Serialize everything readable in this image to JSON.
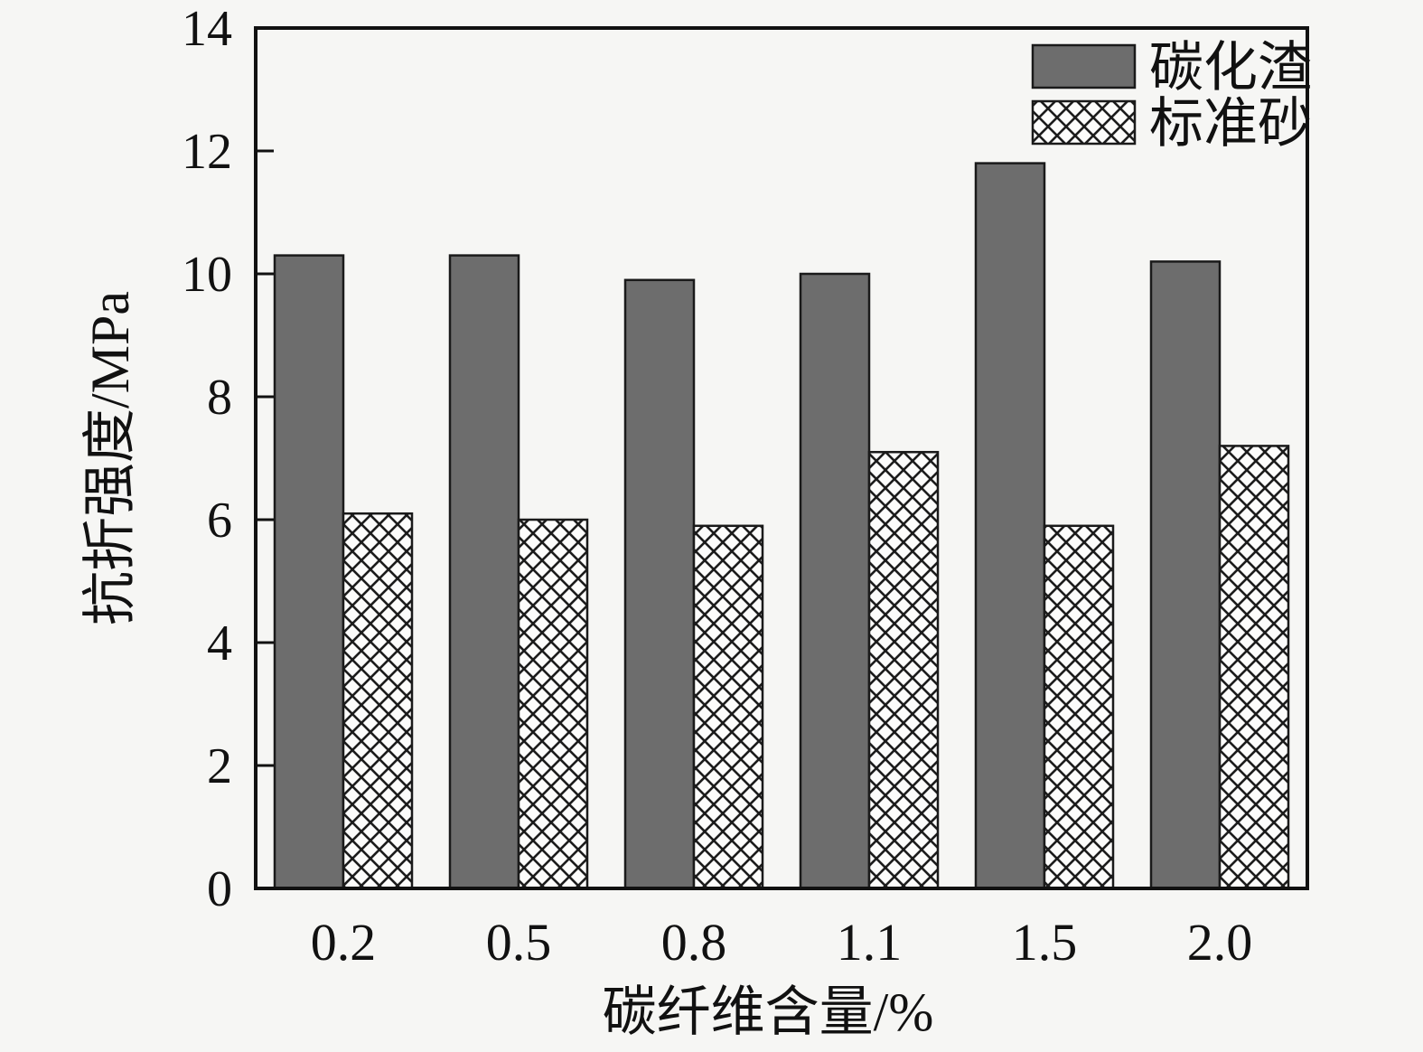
{
  "chart_data": {
    "type": "bar",
    "title": "",
    "xlabel": "碳纤维含量/%",
    "ylabel": "抗折强度/MPa",
    "categories": [
      "0.2",
      "0.5",
      "0.8",
      "1.1",
      "1.5",
      "2.0"
    ],
    "series": [
      {
        "name": "碳化渣",
        "style": "solid",
        "color": "#6d6d6d",
        "values": [
          10.3,
          10.3,
          9.9,
          10.0,
          11.8,
          10.2
        ]
      },
      {
        "name": "标准砂",
        "style": "crosshatch",
        "color": "#fcfcfb",
        "values": [
          6.1,
          6.0,
          5.9,
          7.1,
          5.9,
          7.2
        ]
      }
    ],
    "ylim": [
      0,
      14
    ],
    "yticks": [
      0,
      2,
      4,
      6,
      8,
      10,
      12,
      14
    ],
    "grid": false,
    "legend_position": "top-right",
    "colors": {
      "axis": "#111111",
      "bar_edge": "#1a1a1a",
      "background": "#f6f6f4",
      "hatch_line": "#1c1c1c"
    }
  }
}
